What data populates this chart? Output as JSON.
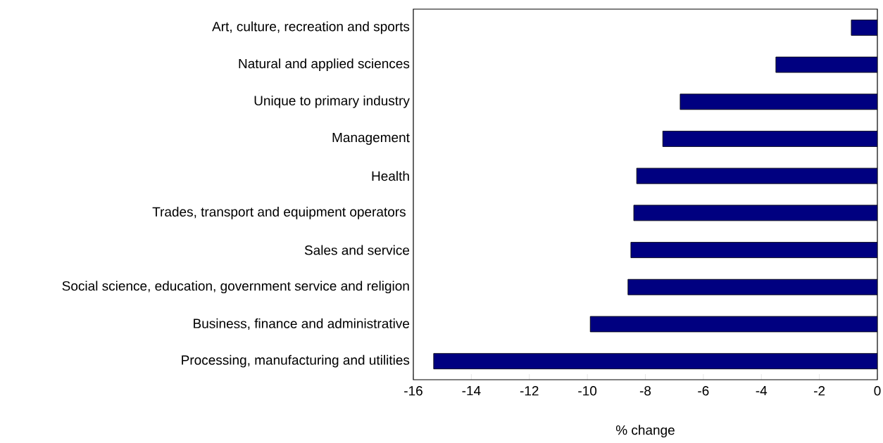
{
  "chart_data": {
    "type": "bar",
    "orientation": "horizontal",
    "xlabel": "% change",
    "categories": [
      "Art, culture, recreation and sports",
      "Natural and applied sciences",
      "Unique to primary industry",
      "Management",
      "Health",
      "Trades, transport and equipment operators ",
      "Sales and service",
      "Social science, education, government service and religion",
      "Business, finance and administrative",
      "Processing, manufacturing and utilities"
    ],
    "values": [
      -0.9,
      -3.5,
      -6.8,
      -7.4,
      -8.3,
      -8.4,
      -8.5,
      -8.6,
      -9.9,
      -15.3
    ],
    "color": "#000080",
    "xlim": [
      -16,
      0
    ],
    "xticks": [
      -16,
      -14,
      -12,
      -10,
      -8,
      -6,
      -4,
      -2,
      0
    ]
  }
}
